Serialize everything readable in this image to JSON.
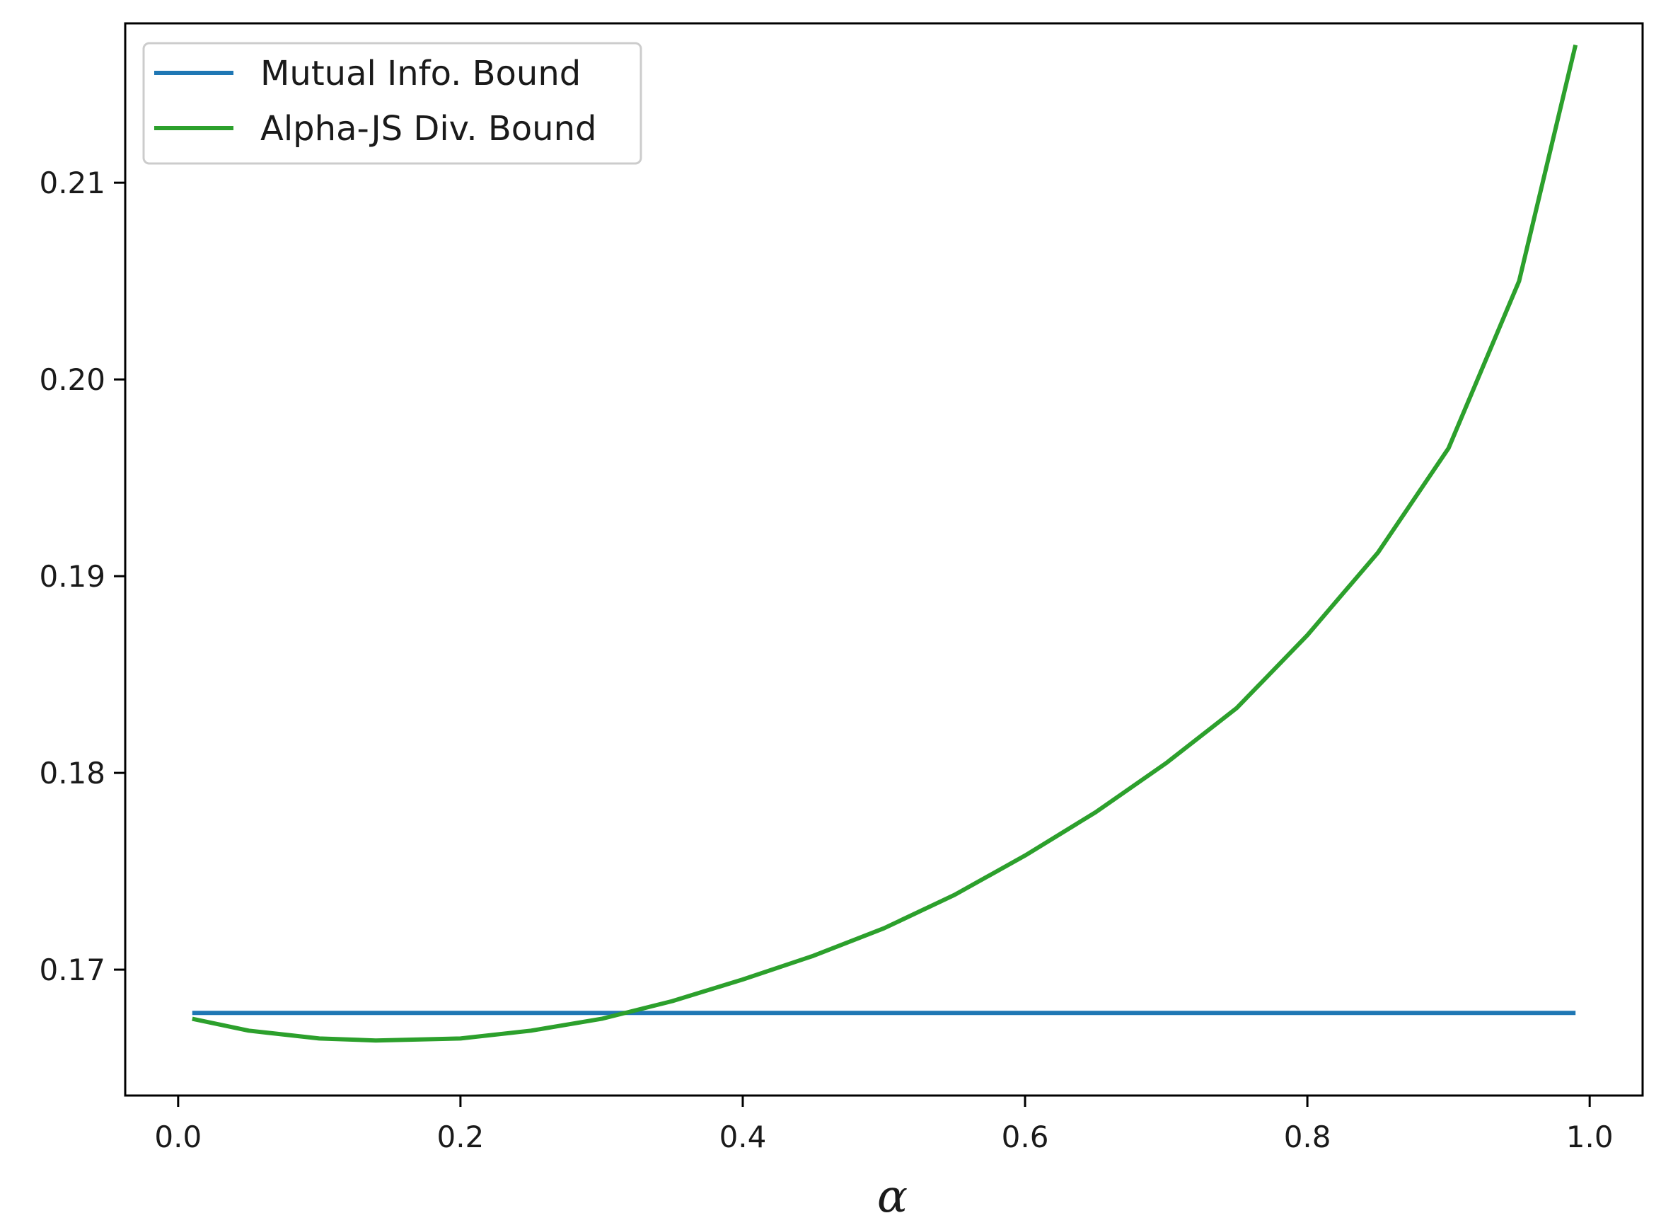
{
  "chart_data": {
    "type": "line",
    "title": "",
    "xlabel": "α",
    "ylabel": "",
    "xlim": [
      -0.0375,
      1.0375
    ],
    "ylim": [
      0.1636,
      0.2181
    ],
    "xticks": [
      0.0,
      0.2,
      0.4,
      0.6,
      0.8,
      1.0
    ],
    "xtick_labels": [
      "0.0",
      "0.2",
      "0.4",
      "0.6",
      "0.8",
      "1.0"
    ],
    "yticks": [
      0.17,
      0.18,
      0.19,
      0.2,
      0.21
    ],
    "ytick_labels": [
      "0.17",
      "0.18",
      "0.19",
      "0.20",
      "0.21"
    ],
    "grid": false,
    "legend_position": "top-left",
    "series": [
      {
        "name": "Mutual Info. Bound",
        "color": "#1f77b4",
        "x": [
          0.01,
          0.99
        ],
        "y": [
          0.1678,
          0.1678
        ]
      },
      {
        "name": "Alpha-JS Div. Bound",
        "color": "#2ca02c",
        "x": [
          0.01,
          0.05,
          0.1,
          0.14,
          0.2,
          0.25,
          0.3,
          0.35,
          0.4,
          0.45,
          0.5,
          0.55,
          0.6,
          0.65,
          0.7,
          0.75,
          0.8,
          0.85,
          0.9,
          0.95,
          0.99
        ],
        "y": [
          0.1675,
          0.1669,
          0.1665,
          0.1664,
          0.1665,
          0.1669,
          0.1675,
          0.1684,
          0.1695,
          0.1707,
          0.1721,
          0.1738,
          0.1758,
          0.178,
          0.1805,
          0.1833,
          0.187,
          0.1912,
          0.1965,
          0.205,
          0.217
        ]
      }
    ]
  }
}
